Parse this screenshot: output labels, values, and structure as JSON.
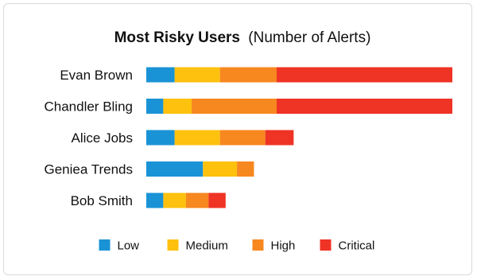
{
  "chart_data": {
    "type": "bar",
    "orientation": "horizontal",
    "stacked": true,
    "title": "Most Risky Users",
    "subtitle": "(Number of Alerts)",
    "categories": [
      "Evan Brown",
      "Chandler Bling",
      "Alice Jobs",
      "Geniea Trends",
      "Bob Smith"
    ],
    "series": [
      {
        "name": "Low",
        "color": "#1a93d6",
        "values": [
          5,
          3,
          5,
          10,
          3
        ]
      },
      {
        "name": "Medium",
        "color": "#fdc10e",
        "values": [
          8,
          5,
          8,
          6,
          4
        ]
      },
      {
        "name": "High",
        "color": "#f7871f",
        "values": [
          10,
          15,
          8,
          3,
          4
        ]
      },
      {
        "name": "Critical",
        "color": "#ef3325",
        "values": [
          31,
          31,
          5,
          0,
          3
        ]
      }
    ],
    "xlim": [
      0,
      54
    ],
    "grid": false,
    "legend_position": "bottom"
  }
}
